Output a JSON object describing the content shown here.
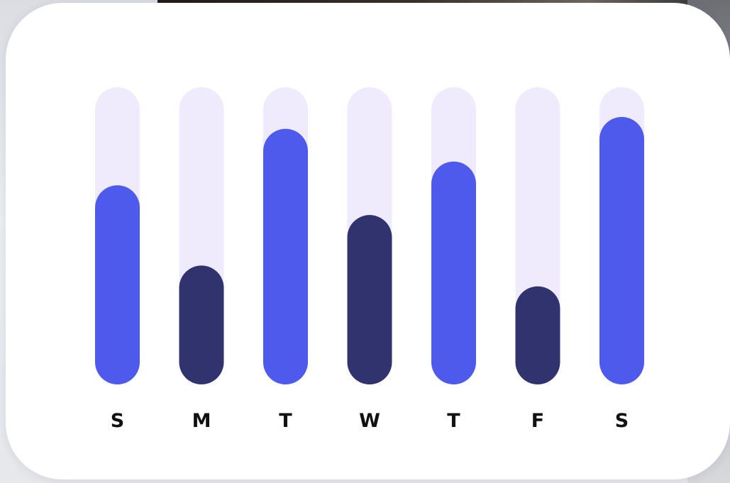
{
  "chart_data": {
    "type": "bar",
    "categories": [
      "S",
      "M",
      "T",
      "W",
      "T",
      "F",
      "S"
    ],
    "values": [
      67,
      40,
      86,
      57,
      75,
      33,
      90
    ],
    "ylim": [
      0,
      100
    ],
    "title": "",
    "xlabel": "",
    "ylabel": "",
    "grid": false,
    "legend": "none",
    "bar_variants": [
      "primary",
      "secondary",
      "primary",
      "secondary",
      "primary",
      "secondary",
      "primary"
    ]
  },
  "colors": {
    "track": "#efebfd",
    "primary": "#4d5aec",
    "secondary": "#30336d",
    "label": "#111111",
    "card": "#ffffff"
  }
}
